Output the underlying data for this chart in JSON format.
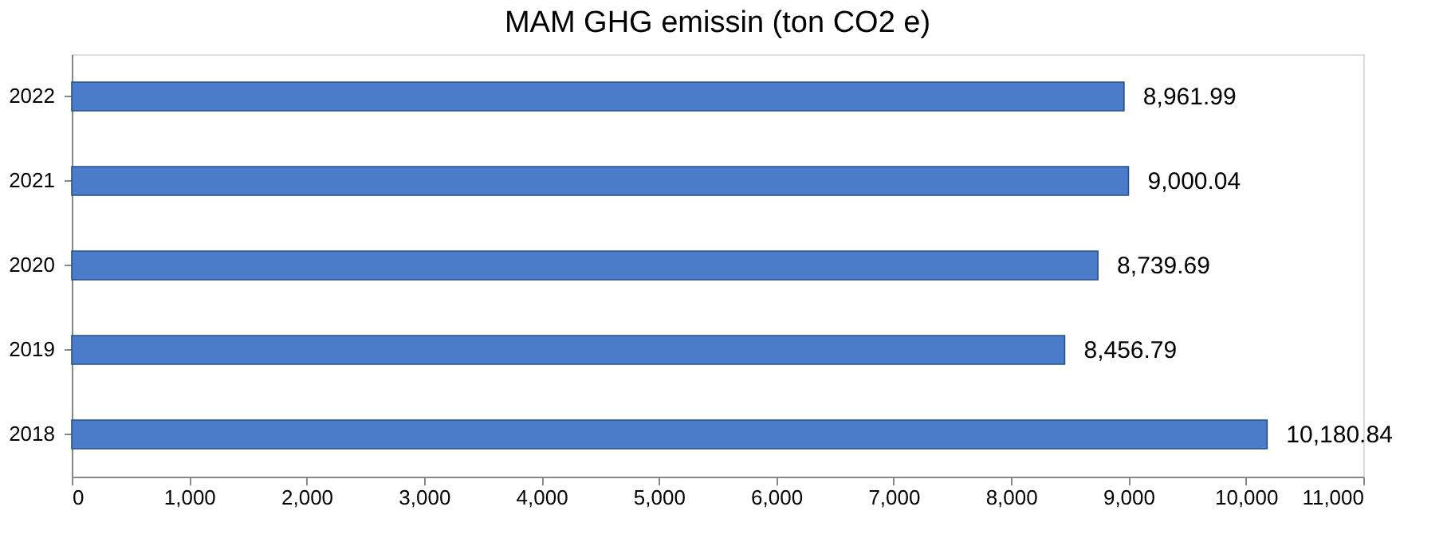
{
  "chart_data": {
    "type": "bar",
    "orientation": "horizontal",
    "title": "MAM GHG emissin (ton CO2 e)",
    "categories": [
      "2022",
      "2021",
      "2020",
      "2019",
      "2018"
    ],
    "values": [
      8961.99,
      9000.04,
      8739.69,
      8456.79,
      10180.84
    ],
    "color": "#4a7cc9",
    "xlim": [
      0,
      11000
    ],
    "xticks": [
      0,
      {
        "value": 1000,
        "label": "1,000"
      },
      {
        "value": 2000,
        "label": "2,000"
      },
      {
        "value": 3000,
        "label": "3,000"
      },
      {
        "value": 4000,
        "label": "4,000"
      },
      {
        "value": 5000,
        "label": "5,000"
      },
      {
        "value": 6000,
        "label": "6,000"
      },
      {
        "value": 7000,
        "label": "7,000"
      },
      {
        "value": 8000,
        "label": "8,000"
      },
      {
        "value": 9000,
        "label": "9,000"
      },
      {
        "value": 10000,
        "label": "10,000"
      },
      {
        "value": 11000,
        "label": "11,000"
      }
    ],
    "value_labels": [
      "8,961.99",
      "9,000.04",
      "8,739.69",
      "8,456.79",
      "10,180.84"
    ],
    "grid": false
  }
}
